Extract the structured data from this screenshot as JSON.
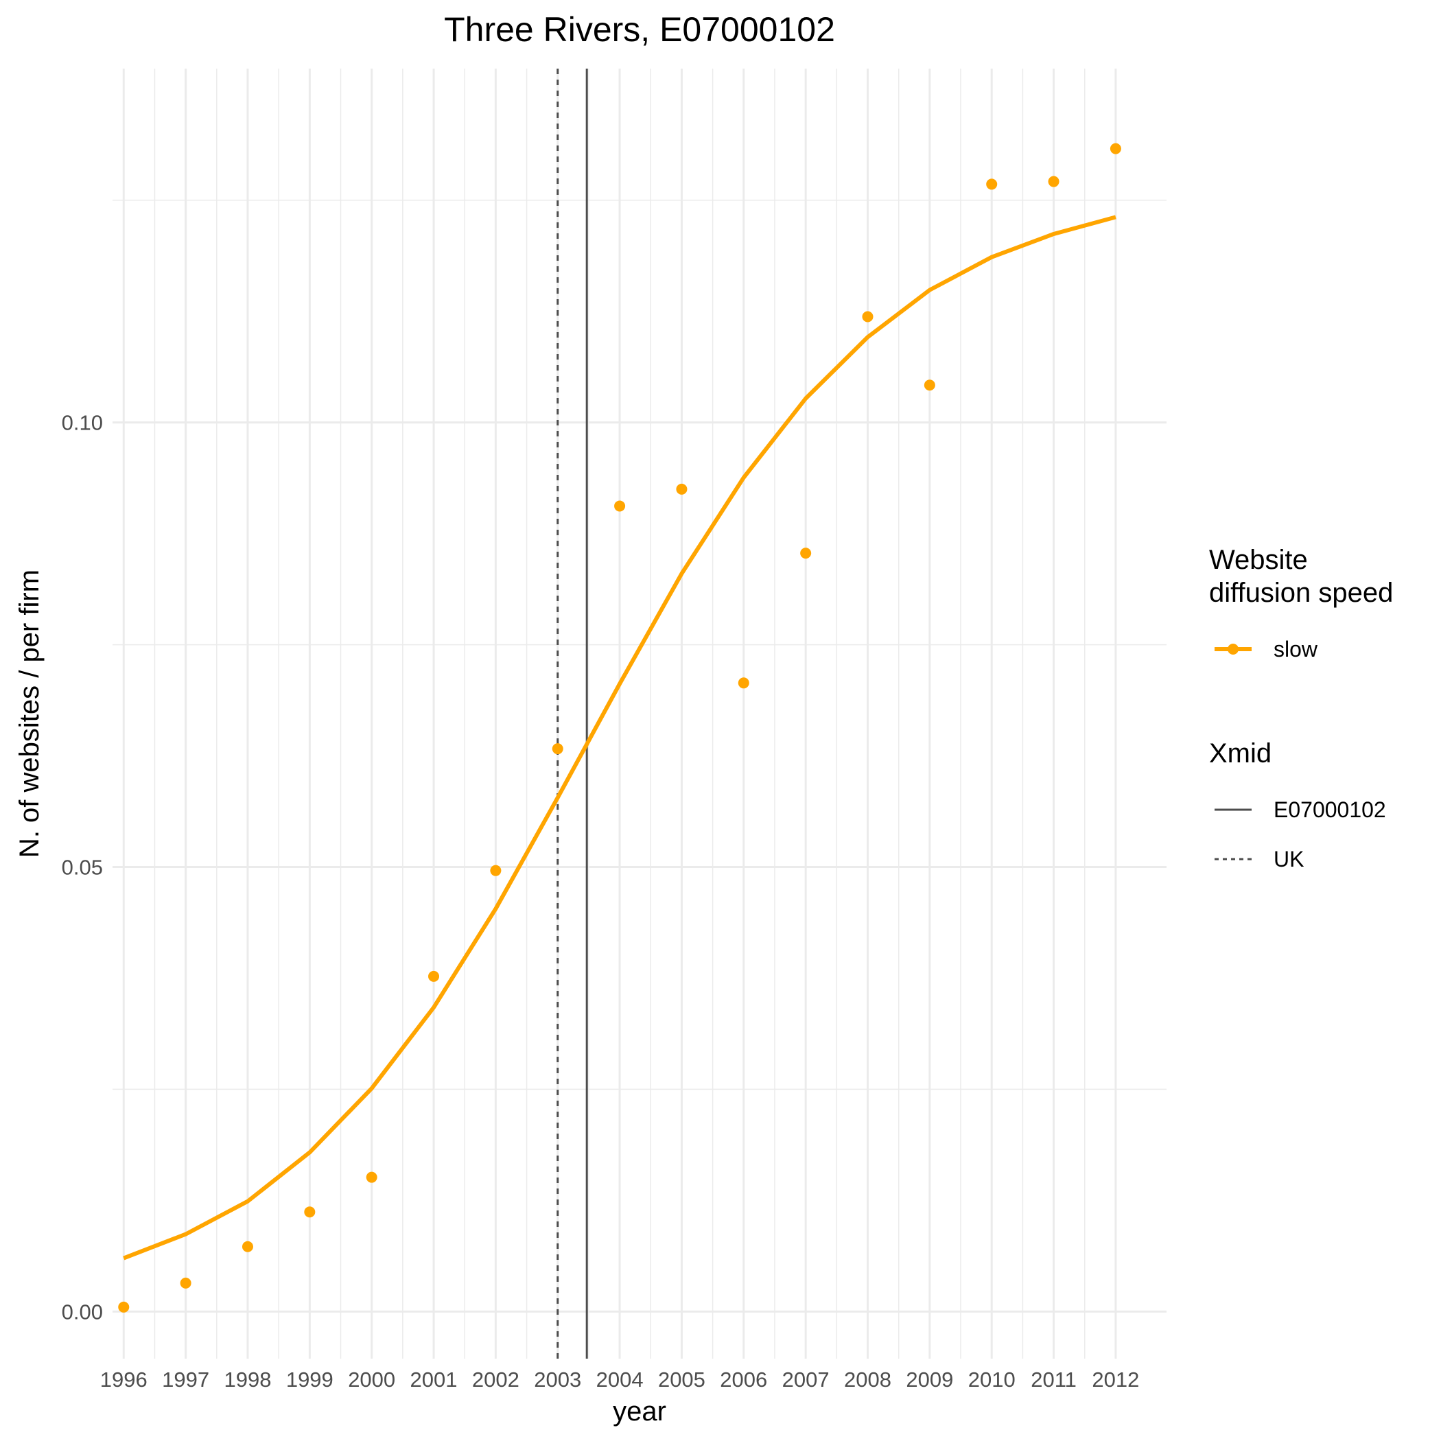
{
  "chart_data": {
    "type": "line",
    "title": "Three Rivers, E07000102",
    "xlabel": "year",
    "ylabel": "N. of websites / per firm",
    "x_ticks": [
      "1996",
      "1997",
      "1998",
      "1999",
      "2000",
      "2001",
      "2002",
      "2003",
      "2004",
      "2005",
      "2006",
      "2007",
      "2008",
      "2009",
      "2010",
      "2011",
      "2012"
    ],
    "y_ticks": [
      "0.00",
      "0.05",
      "0.10"
    ],
    "xlim": [
      1995.82,
      2012.82
    ],
    "ylim": [
      -0.0053,
      0.1398
    ],
    "grid": true,
    "legend_position": "right",
    "colors": {
      "series": "#FFA500",
      "xmid": "#4d4d4d",
      "grid": "#ebebeb"
    },
    "series": [
      {
        "name": "slow",
        "kind": "points",
        "x": [
          1996,
          1997,
          1998,
          1999,
          2000,
          2001,
          2002,
          2003,
          2004,
          2005,
          2006,
          2007,
          2008,
          2009,
          2010,
          2011,
          2012
        ],
        "y": [
          0.0005,
          0.0032,
          0.0073,
          0.0112,
          0.0151,
          0.0377,
          0.0496,
          0.0633,
          0.0906,
          0.0925,
          0.0707,
          0.0853,
          0.1119,
          0.1042,
          0.1268,
          0.1271,
          0.1308
        ]
      },
      {
        "name": "slow",
        "kind": "fit",
        "x": [
          1996,
          1997,
          1998,
          1999,
          2000,
          2001,
          2002,
          2003,
          2004,
          2005,
          2006,
          2007,
          2008,
          2009,
          2010,
          2011,
          2012
        ],
        "y": [
          0.006,
          0.0087,
          0.0124,
          0.0179,
          0.0251,
          0.0342,
          0.0453,
          0.0578,
          0.0706,
          0.083,
          0.0938,
          0.1027,
          0.1096,
          0.1149,
          0.1186,
          0.1212,
          0.1231
        ]
      }
    ],
    "vlines": [
      {
        "name": "E07000102",
        "x": 2003.47,
        "style": "solid"
      },
      {
        "name": "UK",
        "x": 2003.0,
        "style": "dashed"
      }
    ],
    "legends": [
      {
        "title": "Website\ndiffusion speed",
        "items": [
          "slow"
        ]
      },
      {
        "title": "Xmid",
        "items": [
          "E07000102",
          "UK"
        ]
      }
    ]
  }
}
